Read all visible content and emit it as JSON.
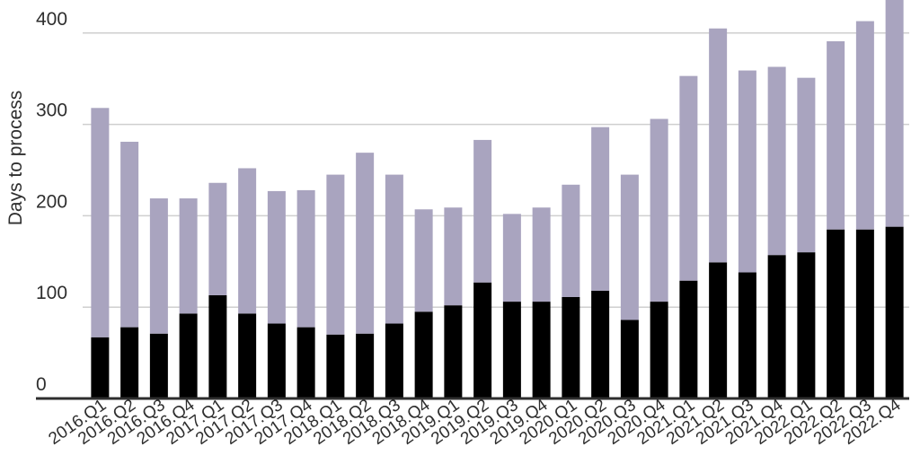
{
  "chart_data": {
    "type": "bar",
    "stacked": true,
    "title": "",
    "xlabel": "",
    "ylabel": "Days to process",
    "ylim": [
      0,
      430
    ],
    "yticks": [
      0,
      100,
      200,
      300,
      400
    ],
    "grid": true,
    "legend": "none",
    "categories": [
      "2016.Q1",
      "2016.Q2",
      "2016.Q3",
      "2016.Q4",
      "2017.Q1",
      "2017.Q2",
      "2017.Q3",
      "2017.Q4",
      "2018.Q1",
      "2018.Q2",
      "2018.Q3",
      "2018.Q4",
      "2019.Q1",
      "2019.Q2",
      "2019.Q3",
      "2019.Q4",
      "2020.Q1",
      "2020.Q2",
      "2020.Q3",
      "2020.Q4",
      "2021.Q1",
      "2021.Q2",
      "2021.Q3",
      "2021.Q4",
      "2022.Q1",
      "2022.Q2",
      "2022.Q3",
      "2022.Q4"
    ],
    "x_tick_labels": [
      "2016.Q1",
      "2016.Q2",
      "2016.Q3",
      "2016.Q4",
      "2017.Q1",
      "2017.Q2",
      "2017.Q3",
      "2017.Q4",
      "2018.Q1",
      "2018.Q2",
      "2018.Q3",
      "2018.Q4",
      "2019.Q1",
      "2019.Q2",
      "2019.Q3",
      "2019.Q4",
      "2020.Q1",
      "2020.Q2",
      "2020.Q3",
      "2020.Q4",
      "2021.Q1",
      "2021.Q2",
      "2021.Q3",
      "2021.Q4",
      "2022.Q1",
      "2022.Q2",
      "2022.Q3",
      "2022.Q4"
    ],
    "series": [
      {
        "color": "#000000",
        "values": [
          67,
          78,
          71,
          93,
          113,
          93,
          82,
          78,
          70,
          71,
          82,
          95,
          102,
          127,
          106,
          106,
          111,
          118,
          86,
          106,
          129,
          149,
          138,
          157,
          160,
          185,
          185,
          188
        ]
      },
      {
        "color": "#a9a4bf",
        "values": [
          251,
          203,
          148,
          126,
          123,
          159,
          145,
          150,
          175,
          198,
          163,
          112,
          107,
          156,
          96,
          103,
          123,
          179,
          159,
          200,
          224,
          256,
          221,
          206,
          191,
          206,
          228,
          252
        ]
      }
    ],
    "totals": [
      318,
      281,
      219,
      219,
      236,
      252,
      227,
      228,
      245,
      269,
      245,
      207,
      209,
      283,
      202,
      209,
      234,
      297,
      245,
      306,
      353,
      405,
      359,
      363,
      351,
      391,
      413,
      440
    ]
  }
}
